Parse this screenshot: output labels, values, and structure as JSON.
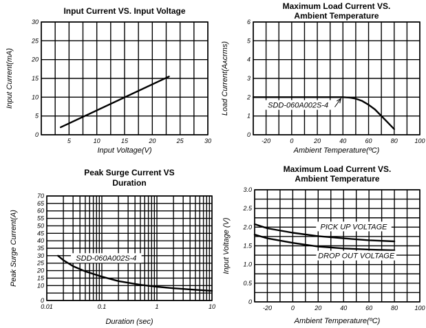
{
  "chart_data": [
    {
      "type": "line",
      "title": [
        "Input Current VS. Input Voltage"
      ],
      "xlabel": "Input  Voltage(V)",
      "ylabel": "Input Current(mA)",
      "xlim": [
        0,
        30
      ],
      "ylim": [
        0,
        30
      ],
      "x_scale": "linear",
      "x_ticks": [
        5,
        10,
        15,
        20,
        25,
        30
      ],
      "y_ticks": [
        0,
        5,
        10,
        15,
        20,
        25,
        30
      ],
      "x_tick_labels": [
        "5",
        "10",
        "15",
        "20",
        "25",
        "30"
      ],
      "y_tick_labels": [
        "0",
        "5",
        "10",
        "15",
        "20",
        "25",
        "30"
      ],
      "x_grid": [
        0,
        2.5,
        5,
        7.5,
        10,
        12.5,
        15,
        17.5,
        20,
        22.5,
        25,
        27.5,
        30
      ],
      "y_grid": [
        0,
        5,
        10,
        15,
        20,
        25,
        30
      ],
      "grid": true,
      "series": [
        {
          "x": [
            3.5,
            23
          ],
          "y": [
            2,
            15.5
          ]
        }
      ],
      "annotations": []
    },
    {
      "type": "line",
      "title": [
        "Maximum Load Current VS.",
        "Ambient  Temperature"
      ],
      "xlabel": "Ambient Temperature(ºC)",
      "ylabel": "Load Current(Aᴀᴄrms)",
      "xlim": [
        -30,
        100
      ],
      "ylim": [
        0,
        6
      ],
      "x_scale": "linear",
      "x_ticks": [
        -20,
        0,
        20,
        40,
        60,
        80,
        100
      ],
      "y_ticks": [
        0,
        1,
        2,
        3,
        4,
        5,
        6
      ],
      "x_tick_labels": [
        "-20",
        "0",
        "20",
        "40",
        "60",
        "80",
        "100"
      ],
      "y_tick_labels": [
        "0",
        "1",
        "2",
        "3",
        "4",
        "5",
        "6"
      ],
      "x_grid": [
        -30,
        -20,
        -10,
        0,
        10,
        20,
        30,
        40,
        50,
        60,
        70,
        80,
        90,
        100
      ],
      "y_grid": [
        0,
        1,
        2,
        3,
        4,
        5,
        6
      ],
      "grid": true,
      "series": [
        {
          "x": [
            -30,
            40,
            45,
            50,
            55,
            60,
            65,
            70,
            75,
            80
          ],
          "y": [
            2,
            2,
            1.98,
            1.92,
            1.8,
            1.6,
            1.35,
            1.0,
            0.65,
            0.3
          ]
        }
      ],
      "annotations": [
        {
          "text": "SDD-060A002S-4",
          "x": 5,
          "y": 1.55,
          "arrow_to": [
            40,
            2
          ]
        }
      ]
    },
    {
      "type": "line",
      "title": [
        "Peak Surge Current VS",
        "Duration"
      ],
      "xlabel": "Duration (sec)",
      "ylabel": "Peak Surge Current(A)",
      "xlim": [
        0.01,
        10
      ],
      "ylim": [
        0,
        70
      ],
      "x_scale": "log",
      "x_ticks": [
        0.01,
        0.1,
        1,
        10
      ],
      "y_ticks": [
        0,
        10,
        15,
        20,
        25,
        30,
        35,
        40,
        45,
        50,
        55,
        60,
        65,
        70
      ],
      "x_tick_labels": [
        "0.01",
        "0.1",
        "1",
        "10"
      ],
      "y_tick_labels": [
        "0",
        "10",
        "15",
        "20",
        "25",
        "30",
        "35",
        "40",
        "45",
        "50",
        "55",
        "60",
        "65",
        "70"
      ],
      "x_grid": [
        0.01,
        0.02,
        0.03,
        0.04,
        0.05,
        0.06,
        0.07,
        0.08,
        0.09,
        0.1,
        0.2,
        0.3,
        0.4,
        0.5,
        0.6,
        0.7,
        0.8,
        0.9,
        1,
        2,
        3,
        4,
        5,
        6,
        7,
        8,
        9,
        10
      ],
      "y_grid": [
        0,
        5,
        10,
        15,
        20,
        25,
        30,
        35,
        40,
        45,
        50,
        55,
        60,
        65,
        70
      ],
      "grid": true,
      "series": [
        {
          "x": [
            0.016,
            0.02,
            0.03,
            0.05,
            0.1,
            0.2,
            0.5,
            1,
            2,
            5,
            10
          ],
          "y": [
            30,
            27,
            23,
            19.5,
            16,
            13,
            10.5,
            9.2,
            8.2,
            7.2,
            6.5
          ]
        }
      ],
      "annotations": [
        {
          "text": "SDD-060A002S-4",
          "x": 0.12,
          "y": 28
        }
      ]
    },
    {
      "type": "line",
      "title": [
        "Maximum Load Current VS.",
        "Ambient  Temperature"
      ],
      "xlabel": "Ambient Temperature(ºC)",
      "ylabel": "Input Voltage (V)",
      "xlim": [
        -30,
        100
      ],
      "ylim": [
        0,
        3.0
      ],
      "x_scale": "linear",
      "x_ticks": [
        -20,
        0,
        20,
        40,
        60,
        80,
        100
      ],
      "y_ticks": [
        0,
        0.5,
        1.0,
        1.5,
        2.0,
        2.5,
        3.0
      ],
      "x_tick_labels": [
        "-20",
        "0",
        "20",
        "40",
        "60",
        "80",
        "100"
      ],
      "y_tick_labels": [
        "0",
        "0.5",
        "1.0",
        "1.5",
        "2.0",
        "2.5",
        "3.0"
      ],
      "x_grid": [
        -30,
        -20,
        -10,
        0,
        10,
        20,
        30,
        40,
        50,
        60,
        70,
        80,
        90,
        100
      ],
      "y_grid": [
        0,
        0.25,
        0.5,
        0.75,
        1.0,
        1.25,
        1.5,
        1.75,
        2.0,
        2.25,
        2.5,
        2.75,
        3.0
      ],
      "grid": true,
      "series": [
        {
          "name": "PICK UP VOLTAGE",
          "x": [
            -30,
            -20,
            0,
            20,
            40,
            60,
            80
          ],
          "y": [
            2.08,
            1.97,
            1.85,
            1.76,
            1.7,
            1.65,
            1.62
          ]
        },
        {
          "name": "DROP OUT VOLTAGE",
          "x": [
            -30,
            -20,
            0,
            20,
            40,
            60,
            80
          ],
          "y": [
            1.8,
            1.7,
            1.58,
            1.48,
            1.43,
            1.4,
            1.38
          ]
        }
      ],
      "annotations": [
        {
          "text": "PICK UP VOLTAGE",
          "x": 48,
          "y": 2.0
        },
        {
          "text": "DROP OUT VOLTAGE",
          "x": 50,
          "y": 1.22
        }
      ]
    }
  ]
}
